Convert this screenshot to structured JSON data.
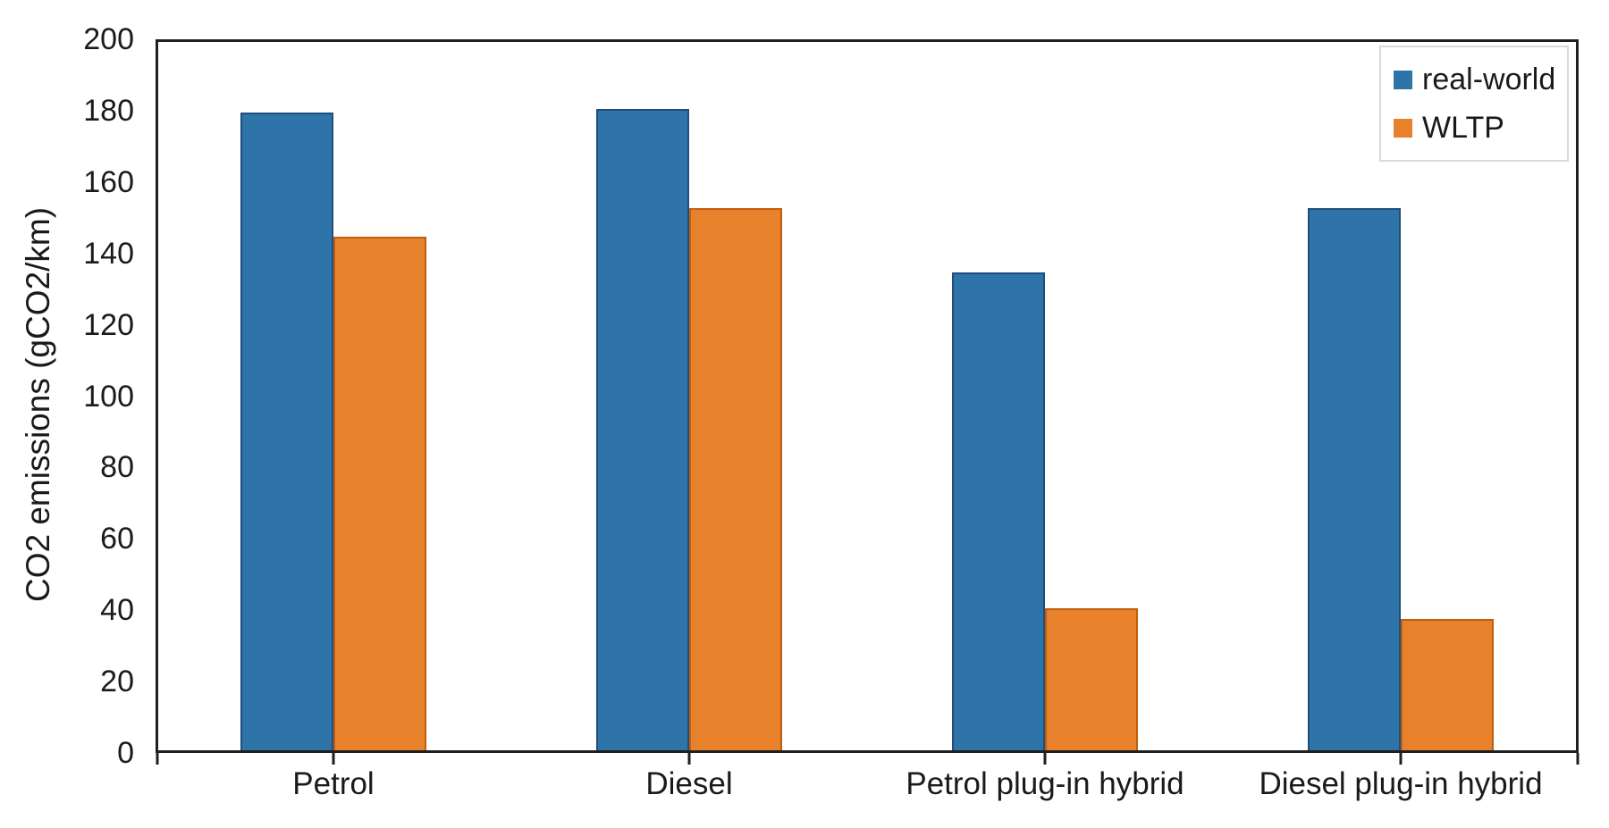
{
  "chart_data": {
    "type": "bar",
    "title": "",
    "categories": [
      "Petrol",
      "Diesel",
      "Petrol plug-in hybrid",
      "Diesel plug-in hybrid"
    ],
    "series": [
      {
        "name": "real-world",
        "color": "#2E74A9",
        "edge_color": "#1E4E79",
        "values": [
          180,
          181,
          135,
          153
        ]
      },
      {
        "name": "WLTP",
        "color": "#E8812C",
        "edge_color": "#BF5E10",
        "values": [
          145,
          153,
          40,
          37
        ]
      }
    ],
    "xlabel": "",
    "ylabel": "CO2 emissions (gCO2/km)",
    "ylim": [
      0,
      200
    ],
    "ytick_step": 20,
    "grid": false,
    "legend_position": "top-right-inside",
    "axis_color": "#1f1f1f",
    "text_color": "#1a1a1a",
    "legend_border_color": "#d9d9d9"
  }
}
